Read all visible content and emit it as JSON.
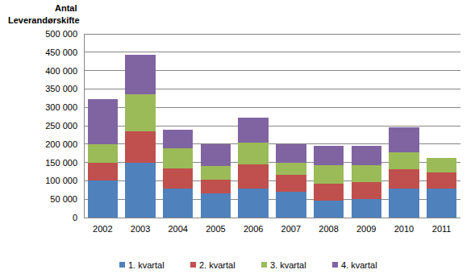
{
  "chart_data": {
    "type": "bar",
    "stacked": true,
    "grid": true,
    "legend": "bottom",
    "ylabel": "Antal Leverandørskifte",
    "categories": [
      "2002",
      "2003",
      "2004",
      "2005",
      "2006",
      "2007",
      "2008",
      "2009",
      "2010",
      "2011"
    ],
    "ylim": [
      0,
      500000
    ],
    "yticks": [
      0,
      {
        "value": 50000,
        "label": "50 000"
      },
      {
        "value": 100000,
        "label": "100 000"
      },
      {
        "value": 150000,
        "label": "150 000"
      },
      {
        "value": 200000,
        "label": "200 000"
      },
      {
        "value": 250000,
        "label": "250 000"
      },
      {
        "value": 300000,
        "label": "300 000"
      },
      {
        "value": 350000,
        "label": "350 000"
      },
      {
        "value": 400000,
        "label": "400 000"
      },
      {
        "value": 450000,
        "label": "450 000"
      },
      {
        "value": 500000,
        "label": "500 000"
      }
    ],
    "series": [
      {
        "name": "1. kvartal",
        "color": "#4f81bd",
        "values": [
          100000,
          150000,
          80000,
          65000,
          80000,
          70000,
          45000,
          50000,
          80000,
          80000
        ]
      },
      {
        "name": "2. kvartal",
        "color": "#c0504d",
        "values": [
          50000,
          85000,
          53000,
          38000,
          65000,
          46000,
          47000,
          46000,
          52000,
          42000
        ]
      },
      {
        "name": "3. kvartal",
        "color": "#9bbb59",
        "values": [
          50000,
          100000,
          55000,
          37000,
          58000,
          34000,
          51000,
          47000,
          45000,
          40000
        ]
      },
      {
        "name": "4. kvartal",
        "color": "#8064a2",
        "values": [
          123000,
          107000,
          52000,
          60000,
          70000,
          50000,
          52000,
          52000,
          68000,
          null
        ]
      }
    ]
  }
}
